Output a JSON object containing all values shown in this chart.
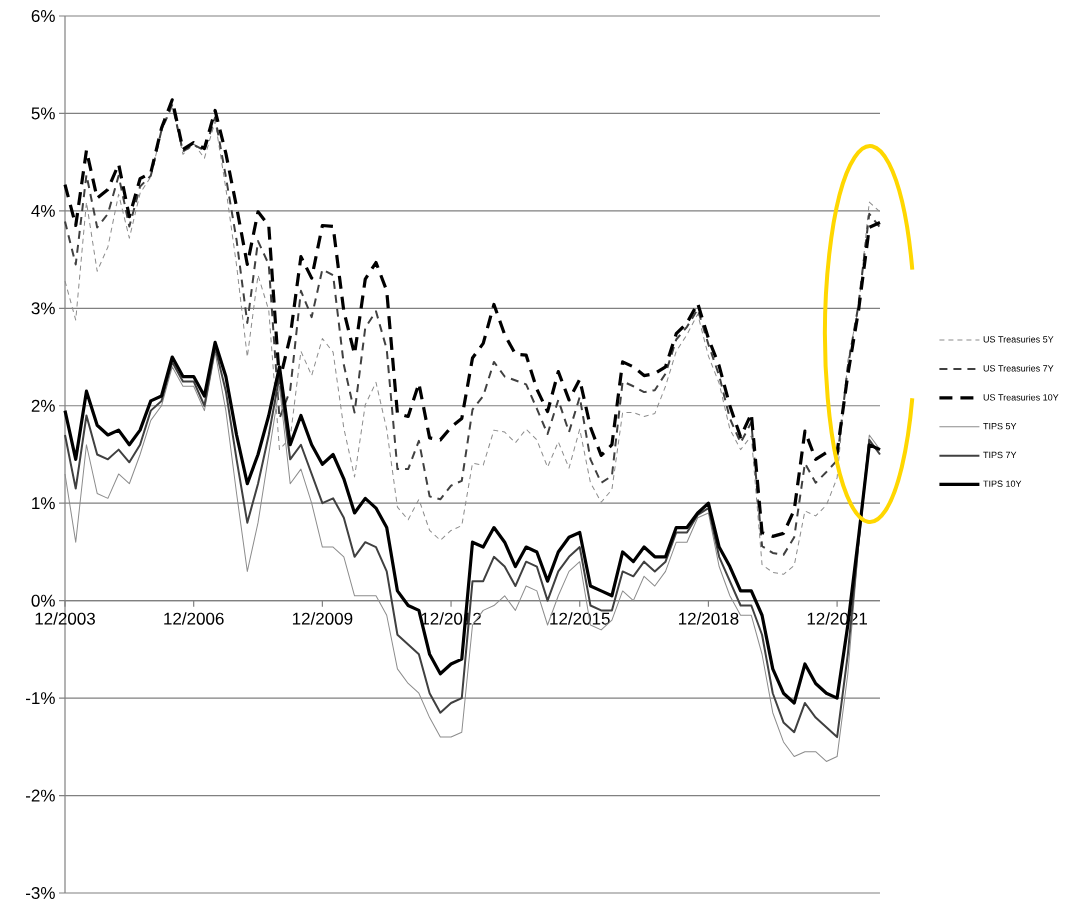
{
  "chart_data": {
    "type": "line",
    "x": [
      "2003-12",
      "2004-03",
      "2004-06",
      "2004-09",
      "2004-12",
      "2005-03",
      "2005-06",
      "2005-09",
      "2005-12",
      "2006-03",
      "2006-06",
      "2006-09",
      "2006-12",
      "2007-03",
      "2007-06",
      "2007-09",
      "2007-12",
      "2008-03",
      "2008-06",
      "2008-09",
      "2008-12",
      "2009-03",
      "2009-06",
      "2009-09",
      "2009-12",
      "2010-03",
      "2010-06",
      "2010-09",
      "2010-12",
      "2011-03",
      "2011-06",
      "2011-09",
      "2011-12",
      "2012-03",
      "2012-06",
      "2012-09",
      "2012-12",
      "2013-03",
      "2013-06",
      "2013-09",
      "2013-12",
      "2014-03",
      "2014-06",
      "2014-09",
      "2014-12",
      "2015-03",
      "2015-06",
      "2015-09",
      "2015-12",
      "2016-03",
      "2016-06",
      "2016-09",
      "2016-12",
      "2017-03",
      "2017-06",
      "2017-09",
      "2017-12",
      "2018-03",
      "2018-06",
      "2018-09",
      "2018-12",
      "2019-03",
      "2019-06",
      "2019-09",
      "2019-12",
      "2020-03",
      "2020-06",
      "2020-09",
      "2020-12",
      "2021-03",
      "2021-06",
      "2021-09",
      "2021-12",
      "2022-03",
      "2022-06",
      "2022-09",
      "2022-12"
    ],
    "xlim": [
      "2003-12",
      "2022-12"
    ],
    "xticks": [
      {
        "value": "2003-12",
        "label": "12/2003"
      },
      {
        "value": "2006-12",
        "label": "12/2006"
      },
      {
        "value": "2009-12",
        "label": "12/2009"
      },
      {
        "value": "2012-12",
        "label": "12/2012"
      },
      {
        "value": "2015-12",
        "label": "12/2015"
      },
      {
        "value": "2018-12",
        "label": "12/2018"
      },
      {
        "value": "2021-12",
        "label": "12/2021"
      }
    ],
    "ylim": [
      -3,
      6
    ],
    "yticks": [
      {
        "value": -3,
        "label": "-3%"
      },
      {
        "value": -2,
        "label": "-2%"
      },
      {
        "value": -1,
        "label": "-1%"
      },
      {
        "value": 0,
        "label": "0%"
      },
      {
        "value": 1,
        "label": "1%"
      },
      {
        "value": 2,
        "label": "2%"
      },
      {
        "value": 3,
        "label": "3%"
      },
      {
        "value": 4,
        "label": "4%"
      },
      {
        "value": 5,
        "label": "5%"
      },
      {
        "value": 6,
        "label": "6%"
      }
    ],
    "grid": "y",
    "legend": "right",
    "series": [
      {
        "name": "US Treasuries 5Y",
        "color": "#8c8c8c",
        "line_style": "dashed",
        "values": [
          3.28,
          2.88,
          4.09,
          3.38,
          3.63,
          4.17,
          3.72,
          4.18,
          4.35,
          4.82,
          5.07,
          4.58,
          4.69,
          4.54,
          4.92,
          4.23,
          3.44,
          2.5,
          3.34,
          2.98,
          1.55,
          1.67,
          2.56,
          2.31,
          2.69,
          2.55,
          1.77,
          1.27,
          2.01,
          2.24,
          1.76,
          0.96,
          0.83,
          1.04,
          0.72,
          0.62,
          0.72,
          0.77,
          1.41,
          1.39,
          1.75,
          1.73,
          1.62,
          1.76,
          1.65,
          1.37,
          1.63,
          1.36,
          1.76,
          1.21,
          1.01,
          1.14,
          1.93,
          1.93,
          1.89,
          1.92,
          2.2,
          2.56,
          2.73,
          2.94,
          2.51,
          2.23,
          1.76,
          1.55,
          1.69,
          0.37,
          0.29,
          0.27,
          0.36,
          0.92,
          0.87,
          0.98,
          1.26,
          2.46,
          3.01,
          4.09,
          3.99
        ]
      },
      {
        "name": "US Treasuries 7Y",
        "color": "#404040",
        "line_style": "dashed",
        "values": [
          3.89,
          3.45,
          4.37,
          3.83,
          3.97,
          4.36,
          3.84,
          4.25,
          4.36,
          4.83,
          5.09,
          4.61,
          4.68,
          4.62,
          4.96,
          4.35,
          3.7,
          2.85,
          3.69,
          3.45,
          1.87,
          2.16,
          3.18,
          2.91,
          3.4,
          3.34,
          2.42,
          1.93,
          2.8,
          2.97,
          2.58,
          1.35,
          1.35,
          1.64,
          1.07,
          1.04,
          1.18,
          1.23,
          1.96,
          2.1,
          2.45,
          2.3,
          2.26,
          2.22,
          1.97,
          1.71,
          2.06,
          1.73,
          2.09,
          1.45,
          1.21,
          1.28,
          2.25,
          2.2,
          2.14,
          2.16,
          2.33,
          2.68,
          2.81,
          2.99,
          2.63,
          2.31,
          1.87,
          1.62,
          1.83,
          0.56,
          0.49,
          0.47,
          0.65,
          1.41,
          1.21,
          1.32,
          1.44,
          2.4,
          3.04,
          3.97,
          3.83
        ]
      },
      {
        "name": "US Treasuries 10Y",
        "color": "#000000",
        "line_style": "dashed",
        "values": [
          4.27,
          3.85,
          4.62,
          4.13,
          4.22,
          4.48,
          3.94,
          4.33,
          4.39,
          4.85,
          5.14,
          4.63,
          4.7,
          4.64,
          5.03,
          4.59,
          4.04,
          3.45,
          3.99,
          3.85,
          2.25,
          2.71,
          3.53,
          3.31,
          3.85,
          3.84,
          2.97,
          2.53,
          3.3,
          3.47,
          3.18,
          1.92,
          1.89,
          2.23,
          1.67,
          1.65,
          1.78,
          1.87,
          2.49,
          2.64,
          3.04,
          2.73,
          2.53,
          2.52,
          2.17,
          1.94,
          2.35,
          2.06,
          2.27,
          1.78,
          1.49,
          1.6,
          2.45,
          2.4,
          2.31,
          2.33,
          2.4,
          2.74,
          2.85,
          3.05,
          2.69,
          2.41,
          2.0,
          1.68,
          1.92,
          0.7,
          0.66,
          0.69,
          0.93,
          1.74,
          1.45,
          1.52,
          1.52,
          2.32,
          2.98,
          3.83,
          3.88
        ]
      },
      {
        "name": "TIPS 5Y",
        "color": "#8c8c8c",
        "line_style": "solid",
        "values": [
          1.3,
          0.6,
          1.6,
          1.1,
          1.05,
          1.3,
          1.2,
          1.5,
          1.85,
          2.0,
          2.4,
          2.2,
          2.2,
          1.95,
          2.55,
          1.95,
          1.1,
          0.3,
          0.8,
          1.5,
          2.2,
          1.2,
          1.35,
          1.0,
          0.55,
          0.55,
          0.45,
          0.05,
          0.05,
          0.05,
          -0.15,
          -0.7,
          -0.85,
          -0.95,
          -1.2,
          -1.4,
          -1.4,
          -1.35,
          -0.25,
          -0.1,
          -0.05,
          0.05,
          -0.1,
          0.15,
          0.1,
          -0.25,
          0.05,
          0.3,
          0.4,
          -0.25,
          -0.3,
          -0.2,
          0.1,
          0.0,
          0.25,
          0.15,
          0.3,
          0.6,
          0.6,
          0.85,
          0.9,
          0.35,
          0.05,
          -0.15,
          -0.15,
          -0.55,
          -1.15,
          -1.45,
          -1.6,
          -1.55,
          -1.55,
          -1.65,
          -1.6,
          -0.75,
          0.55,
          1.7,
          1.55
        ]
      },
      {
        "name": "TIPS 7Y",
        "color": "#404040",
        "line_style": "solid",
        "values": [
          1.7,
          1.15,
          1.9,
          1.5,
          1.45,
          1.55,
          1.42,
          1.6,
          1.95,
          2.05,
          2.45,
          2.25,
          2.25,
          2.0,
          2.6,
          2.15,
          1.45,
          0.8,
          1.2,
          1.7,
          2.3,
          1.45,
          1.6,
          1.3,
          1.0,
          1.05,
          0.85,
          0.45,
          0.6,
          0.55,
          0.3,
          -0.35,
          -0.45,
          -0.55,
          -0.95,
          -1.15,
          -1.05,
          -1.0,
          0.2,
          0.2,
          0.45,
          0.35,
          0.15,
          0.4,
          0.35,
          0.0,
          0.3,
          0.45,
          0.55,
          -0.05,
          -0.1,
          -0.1,
          0.3,
          0.25,
          0.4,
          0.3,
          0.4,
          0.7,
          0.7,
          0.88,
          0.95,
          0.45,
          0.2,
          -0.05,
          -0.05,
          -0.35,
          -0.95,
          -1.25,
          -1.35,
          -1.05,
          -1.2,
          -1.3,
          -1.4,
          -0.55,
          0.6,
          1.65,
          1.5
        ]
      },
      {
        "name": "TIPS 10Y",
        "color": "#000000",
        "line_style": "solid",
        "values": [
          1.95,
          1.45,
          2.15,
          1.8,
          1.7,
          1.75,
          1.6,
          1.75,
          2.05,
          2.1,
          2.5,
          2.3,
          2.3,
          2.1,
          2.65,
          2.3,
          1.7,
          1.2,
          1.5,
          1.9,
          2.4,
          1.6,
          1.9,
          1.6,
          1.4,
          1.5,
          1.25,
          0.9,
          1.05,
          0.95,
          0.75,
          0.1,
          -0.05,
          -0.1,
          -0.55,
          -0.75,
          -0.65,
          -0.6,
          0.6,
          0.55,
          0.75,
          0.6,
          0.35,
          0.55,
          0.5,
          0.2,
          0.5,
          0.65,
          0.7,
          0.15,
          0.1,
          0.05,
          0.5,
          0.4,
          0.55,
          0.45,
          0.45,
          0.75,
          0.75,
          0.9,
          1.0,
          0.55,
          0.35,
          0.1,
          0.1,
          -0.15,
          -0.7,
          -0.95,
          -1.05,
          -0.65,
          -0.85,
          -0.95,
          -1.0,
          -0.25,
          0.65,
          1.6,
          1.55
        ]
      }
    ]
  }
}
